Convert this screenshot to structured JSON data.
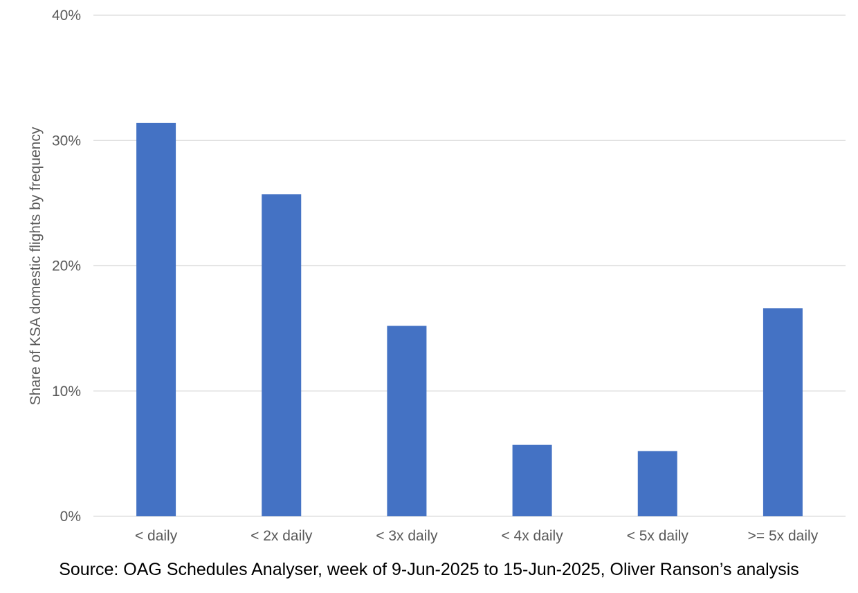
{
  "chart_data": {
    "type": "bar",
    "categories": [
      "< daily",
      "< 2x daily",
      "< 3x daily",
      "< 4x daily",
      "< 5x daily",
      ">= 5x daily"
    ],
    "values": [
      31.4,
      25.7,
      15.2,
      5.7,
      5.2,
      16.6
    ],
    "ylabel": "Share of KSA domestic flights by frequency",
    "ylim": [
      0,
      40
    ],
    "yticks": [
      0,
      10,
      20,
      30,
      40
    ],
    "ytick_labels": [
      "0%",
      "10%",
      "20%",
      "30%",
      "40%"
    ],
    "grid": true,
    "bar_color": "#4472C4",
    "grid_color": "#D9D9D9"
  },
  "source": "Source: OAG Schedules Analyser, week of 9-Jun-2025 to 15-Jun-2025, Oliver Ranson’s analysis"
}
